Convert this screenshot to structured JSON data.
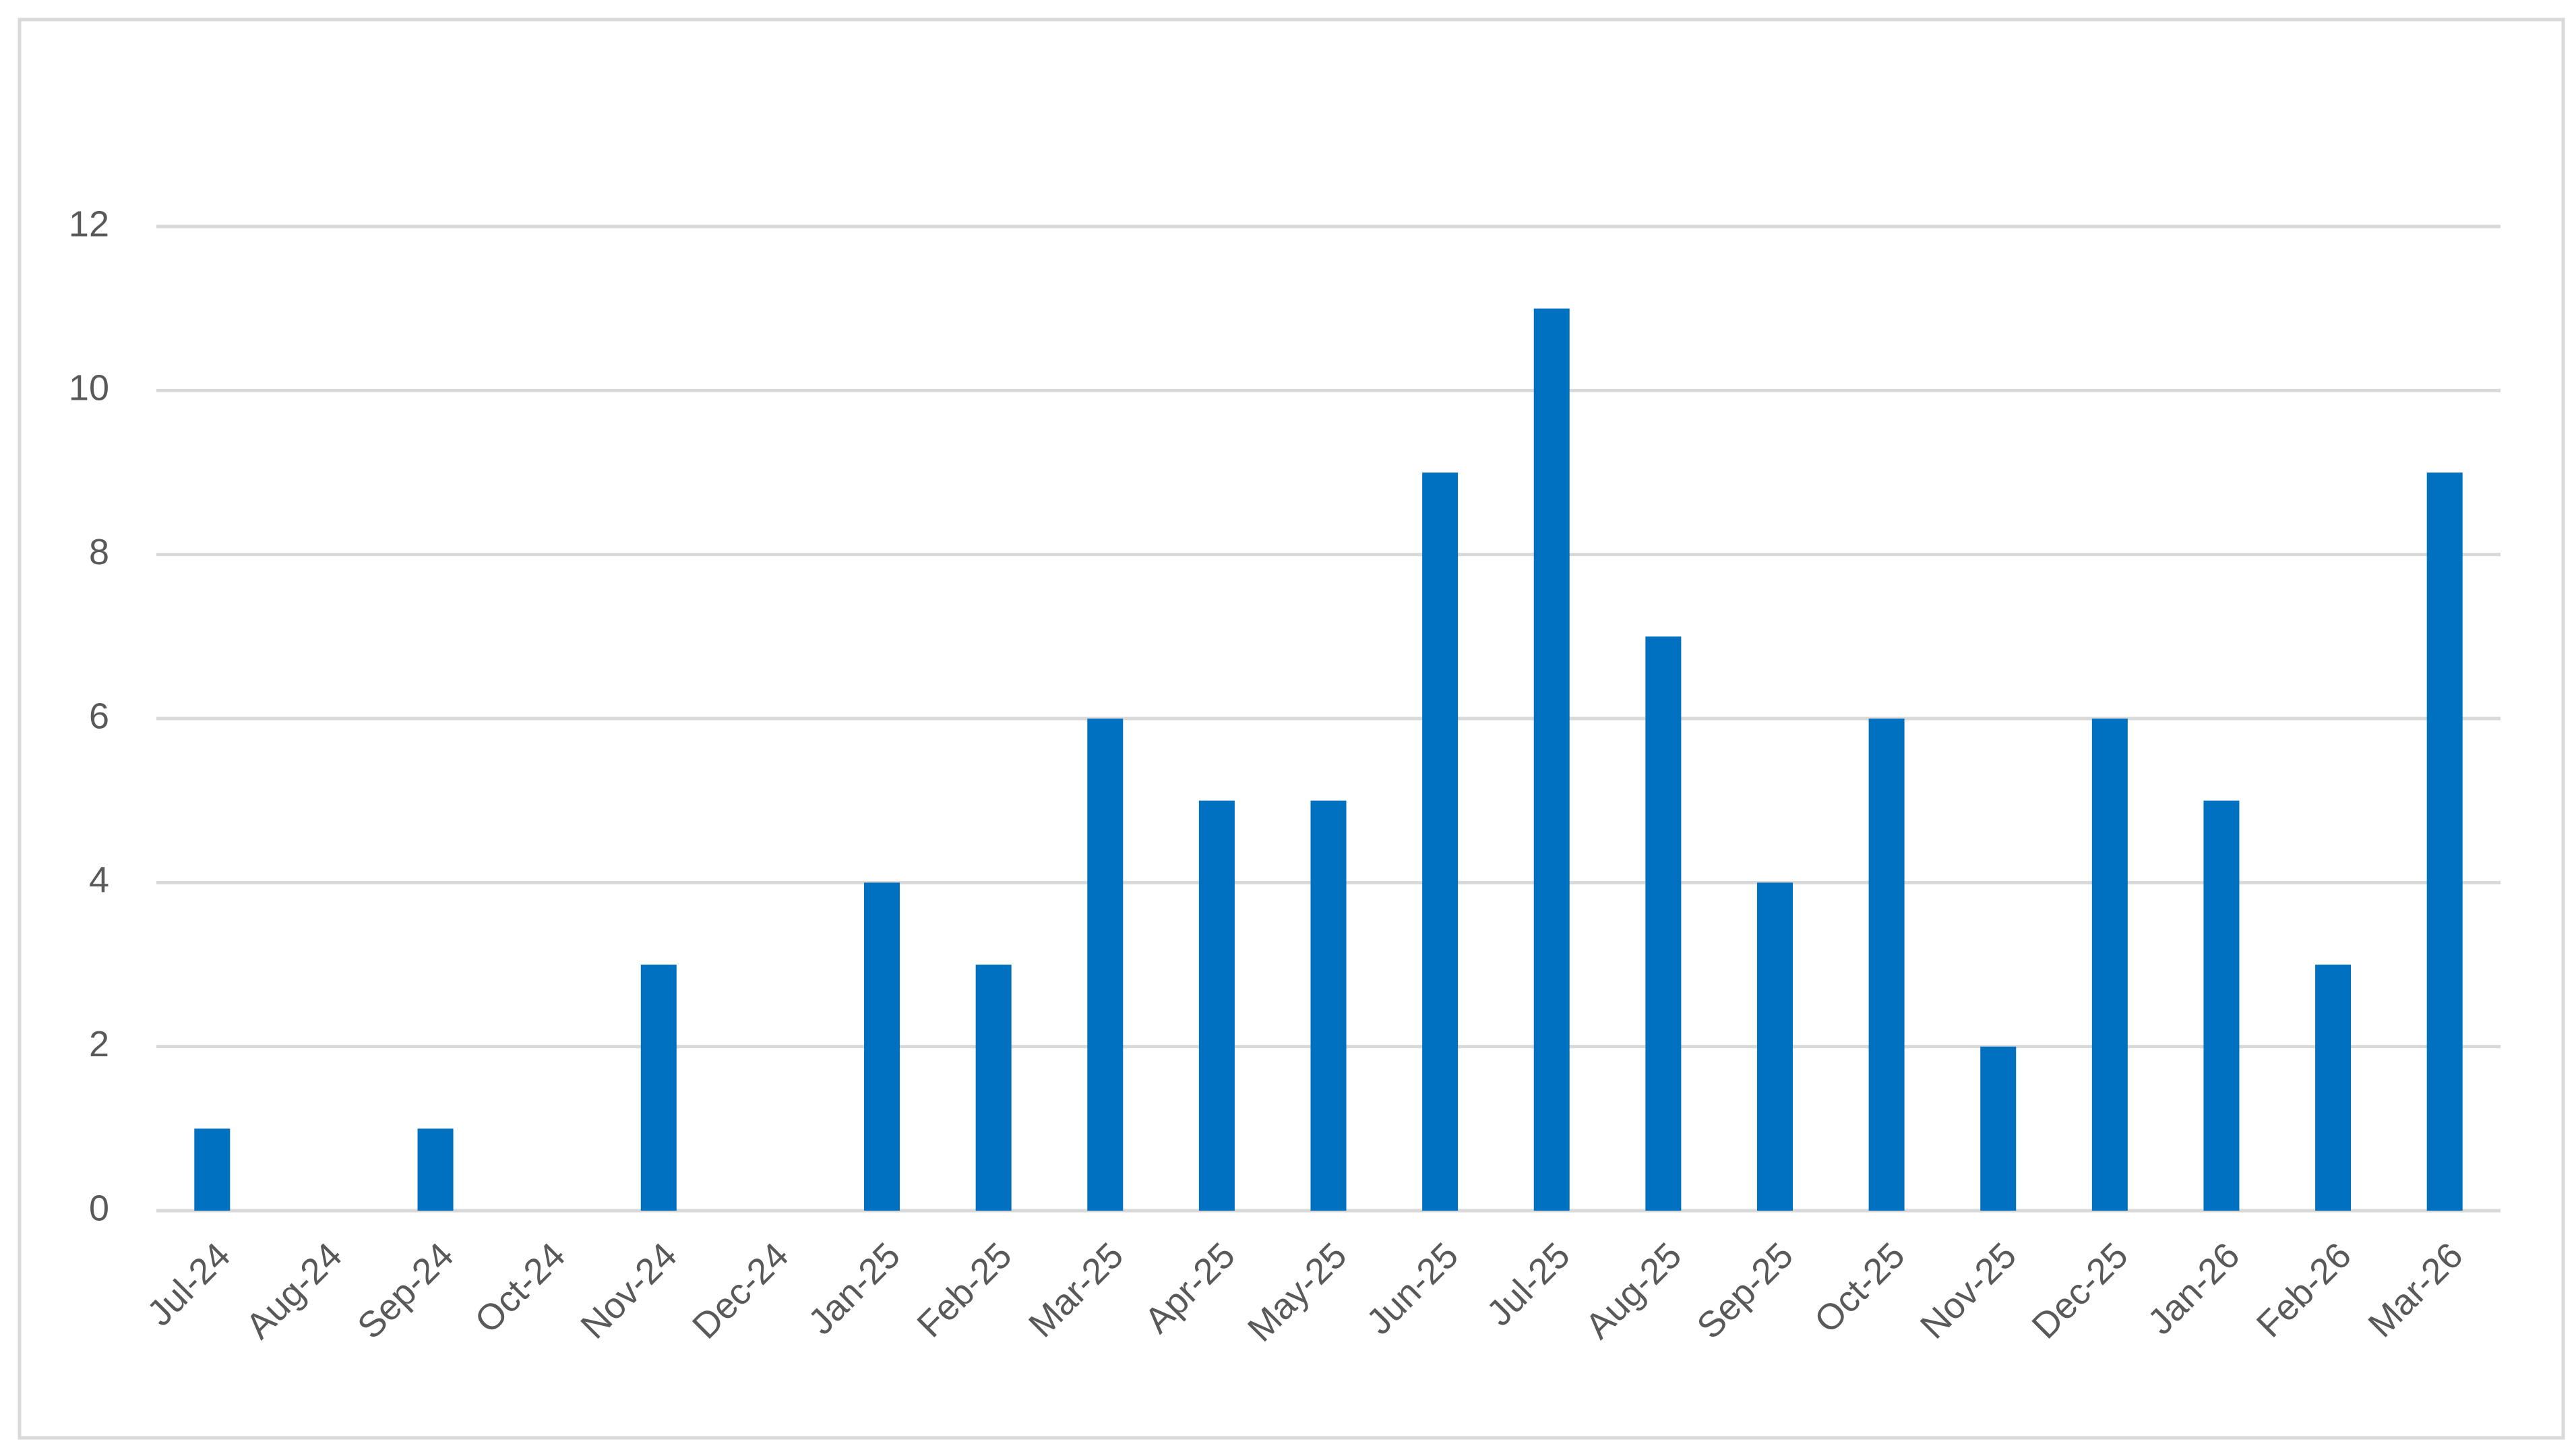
{
  "chart_data": {
    "type": "bar",
    "categories": [
      "Jul-24",
      "Aug-24",
      "Sep-24",
      "Oct-24",
      "Nov-24",
      "Dec-24",
      "Jan-25",
      "Feb-25",
      "Mar-25",
      "Apr-25",
      "May-25",
      "Jun-25",
      "Jul-25",
      "Aug-25",
      "Sep-25",
      "Oct-25",
      "Nov-25",
      "Dec-25",
      "Jan-26",
      "Feb-26",
      "Mar-26"
    ],
    "values": [
      1,
      0,
      1,
      0,
      3,
      0,
      4,
      3,
      6,
      5,
      5,
      9,
      11,
      7,
      4,
      6,
      2,
      6,
      5,
      3,
      9
    ],
    "color": "#0070c0",
    "ylim": [
      0,
      12
    ],
    "yticks": [
      0,
      2,
      4,
      6,
      8,
      10,
      12
    ],
    "grid": true
  }
}
